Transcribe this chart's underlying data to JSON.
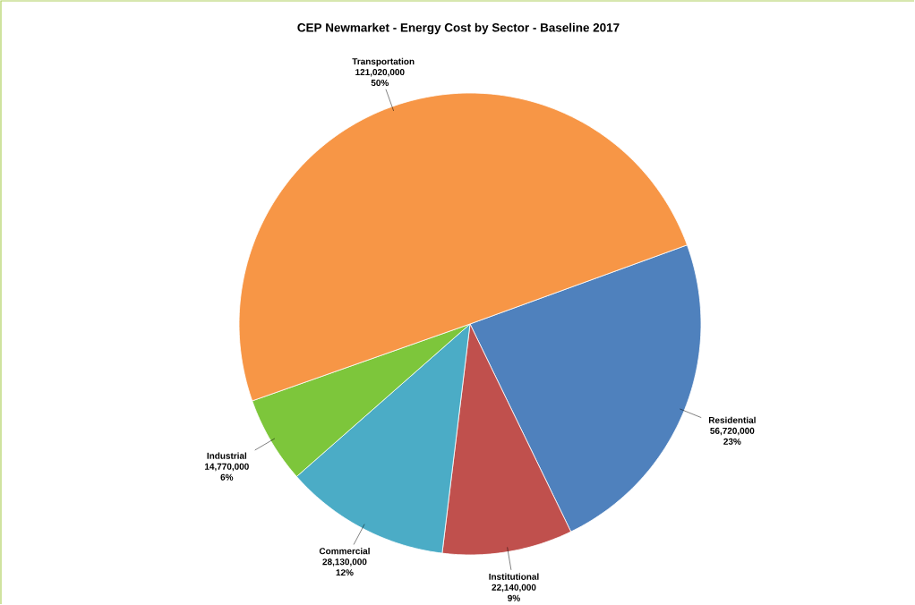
{
  "chart_data": {
    "type": "pie",
    "title": "CEP Newmarket - Energy Cost by Sector - Baseline 2017",
    "categories": [
      "Residential",
      "Institutional",
      "Commercial",
      "Industrial",
      "Transportation"
    ],
    "values": [
      56720000,
      22140000,
      28130000,
      14770000,
      121020000
    ],
    "value_labels": [
      "56,720,000 23%",
      "22,140,000 9%",
      "28,130,000 12%",
      "14,770,000 6%",
      "121,020,000 50%"
    ],
    "colors": [
      "#4f81bd",
      "#c0504d",
      "#4bacc6",
      "#7dc63b",
      "#f79646"
    ]
  }
}
